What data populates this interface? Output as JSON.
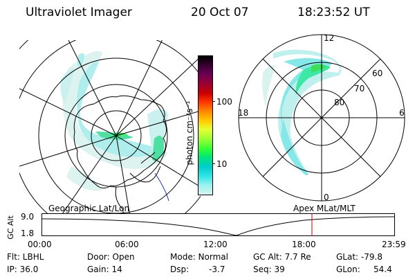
{
  "header": {
    "instrument": "Ultraviolet Imager",
    "date": "20 Oct 07",
    "time": "18:23:52 UT"
  },
  "colorbar": {
    "unit_label": "photon cm⁻²s⁻¹",
    "ticks": [
      "100",
      "10"
    ],
    "colors": [
      "#000000",
      "#3a0033",
      "#6b0055",
      "#990033",
      "#cc0000",
      "#ff3300",
      "#ff8800",
      "#ffcc00",
      "#e6ff33",
      "#99ff33",
      "#33ff33",
      "#00e67a",
      "#00cccc",
      "#33e6e6",
      "#99f0f0",
      "#d6f5f0"
    ]
  },
  "left_panel": {
    "caption": "Geographic Lat/Lon"
  },
  "right_panel": {
    "caption": "Apex MLat/MLT",
    "mlt_labels": {
      "top": "12",
      "left": "18",
      "right": "6",
      "bottom": "0"
    },
    "lat_labels": [
      "60",
      "70",
      "80"
    ]
  },
  "timeline": {
    "y_label": "GC Alt",
    "y_ticks": [
      "9.0",
      "1.8"
    ],
    "x_ticks": [
      "00:00",
      "06:00",
      "12:00",
      "18:00",
      "23:59"
    ],
    "marker_time": "18:23"
  },
  "status": {
    "flt": "Flt: LBHL",
    "ip": "IP: 36.0",
    "door": "Door: Open",
    "gain": "Gain: 14",
    "mode": "Mode: Normal",
    "dsp": "Dsp:",
    "dsp_value": "-3.7",
    "gc_alt": "GC Alt: 7.7 Re",
    "seq": "Seq: 39",
    "glat": "GLat: -79.8",
    "glon": "GLon:",
    "glon_value": "54.4"
  }
}
